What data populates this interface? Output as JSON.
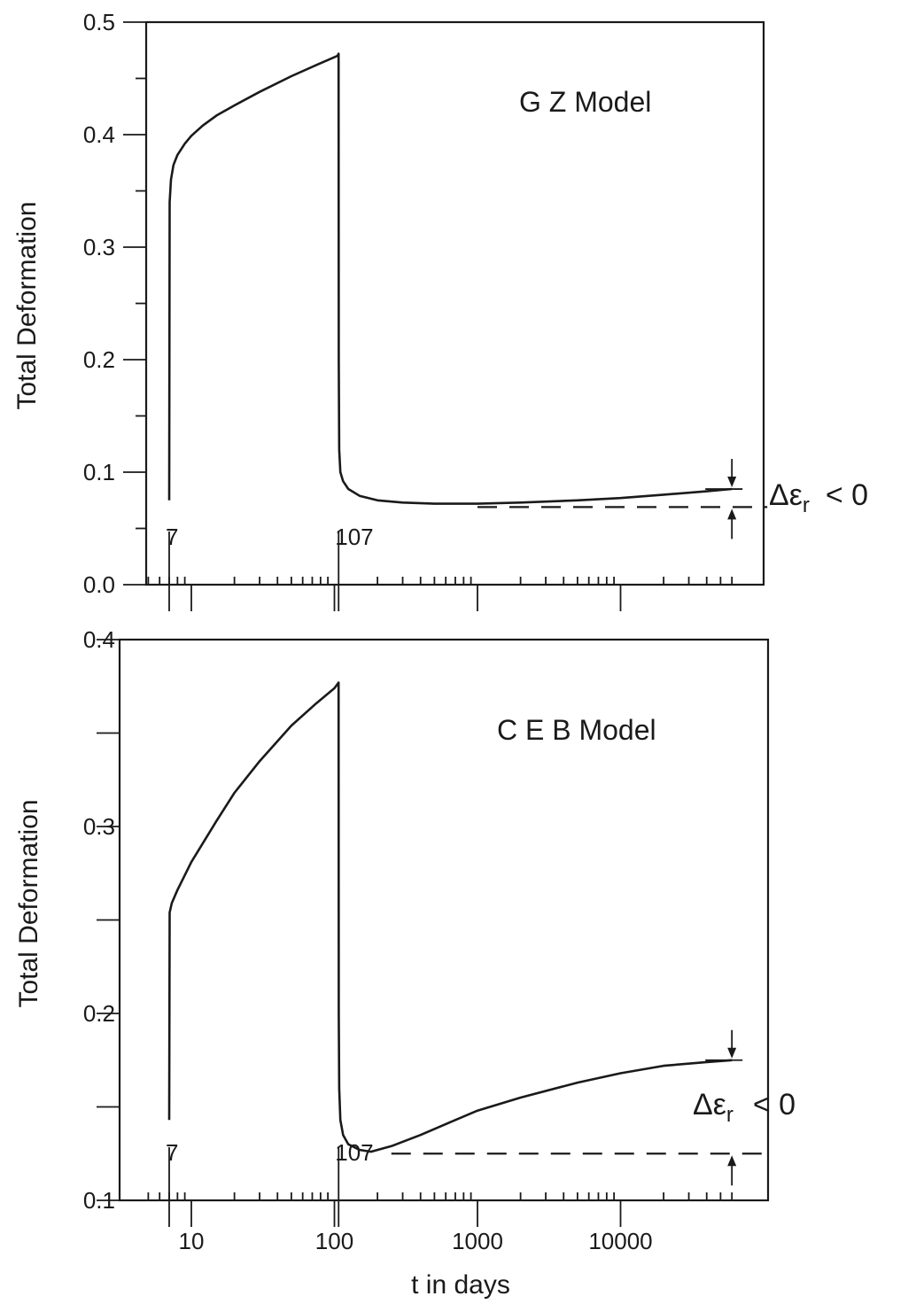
{
  "chart_data": [
    {
      "type": "line",
      "title": "G Z Model",
      "ylabel": "Total Deformation",
      "xlabel": "",
      "x_scale": "log",
      "xlim": [
        4.5,
        70000
      ],
      "ylim": [
        0,
        0.5
      ],
      "y_ticks": [
        0.0,
        0.1,
        0.2,
        0.3,
        0.4,
        0.5
      ],
      "y_tick_labels": [
        "0.0",
        "0.1",
        "0.2",
        "0.3",
        "0.4",
        "0.5"
      ],
      "markers": [
        {
          "x": 7,
          "label": "7"
        },
        {
          "x": 107,
          "label": "107"
        }
      ],
      "series": [
        {
          "x": [
            7,
            7.05,
            7.2,
            7.5,
            8,
            9,
            10,
            12,
            15,
            20,
            30,
            50,
            75,
            105,
            107,
            107.2,
            108,
            110,
            115,
            125,
            150,
            200,
            300,
            500,
            1000,
            2000,
            5000,
            10000,
            20000,
            40000,
            60000
          ],
          "y": [
            0.075,
            0.34,
            0.36,
            0.373,
            0.382,
            0.392,
            0.399,
            0.408,
            0.417,
            0.426,
            0.438,
            0.452,
            0.462,
            0.47,
            0.472,
            0.2,
            0.12,
            0.1,
            0.092,
            0.085,
            0.079,
            0.075,
            0.073,
            0.072,
            0.072,
            0.073,
            0.075,
            0.077,
            0.08,
            0.083,
            0.085
          ]
        }
      ],
      "annotation": {
        "text": "Δε",
        "subscript": "r",
        "suffix": "< 0",
        "x": 60000,
        "y_from": 0.085,
        "y_to": 0.069
      },
      "reference_line": {
        "y": 0.069,
        "x_from": 1000,
        "x_to": 60000,
        "style": "dashed"
      }
    },
    {
      "type": "line",
      "title": "C E B Model",
      "ylabel": "Total Deformation",
      "xlabel": "t  in  days",
      "x_scale": "log",
      "xlim": [
        4.5,
        70000
      ],
      "ylim": [
        0.1,
        0.4
      ],
      "x_ticks": [
        10,
        100,
        1000,
        10000
      ],
      "x_tick_labels": [
        "10",
        "100",
        "1000",
        "10000"
      ],
      "y_ticks": [
        0.1,
        0.15,
        0.2,
        0.25,
        0.3,
        0.35,
        0.4
      ],
      "y_tick_labels": [
        "0.1",
        "",
        "0.2",
        "",
        "0.3",
        "",
        "0.4"
      ],
      "markers": [
        {
          "x": 7,
          "label": "7"
        },
        {
          "x": 107,
          "label": "107"
        }
      ],
      "series": [
        {
          "x": [
            7,
            7.05,
            7.3,
            8,
            10,
            15,
            20,
            30,
            50,
            75,
            100,
            107,
            107.3,
            108,
            110,
            115,
            125,
            150,
            180,
            250,
            400,
            700,
            1000,
            2000,
            5000,
            10000,
            20000,
            40000,
            60000
          ],
          "y": [
            0.143,
            0.254,
            0.259,
            0.266,
            0.281,
            0.303,
            0.318,
            0.335,
            0.354,
            0.366,
            0.374,
            0.377,
            0.2,
            0.16,
            0.143,
            0.135,
            0.13,
            0.127,
            0.126,
            0.129,
            0.135,
            0.143,
            0.148,
            0.155,
            0.163,
            0.168,
            0.172,
            0.174,
            0.175
          ]
        }
      ],
      "annotation": {
        "text": "Δε",
        "subscript": "r",
        "suffix": "< 0",
        "x": 60000,
        "y_from": 0.175,
        "y_to": 0.125
      },
      "reference_line": {
        "y": 0.125,
        "x_from": 250,
        "x_to": 60000,
        "style": "dashed"
      }
    }
  ]
}
